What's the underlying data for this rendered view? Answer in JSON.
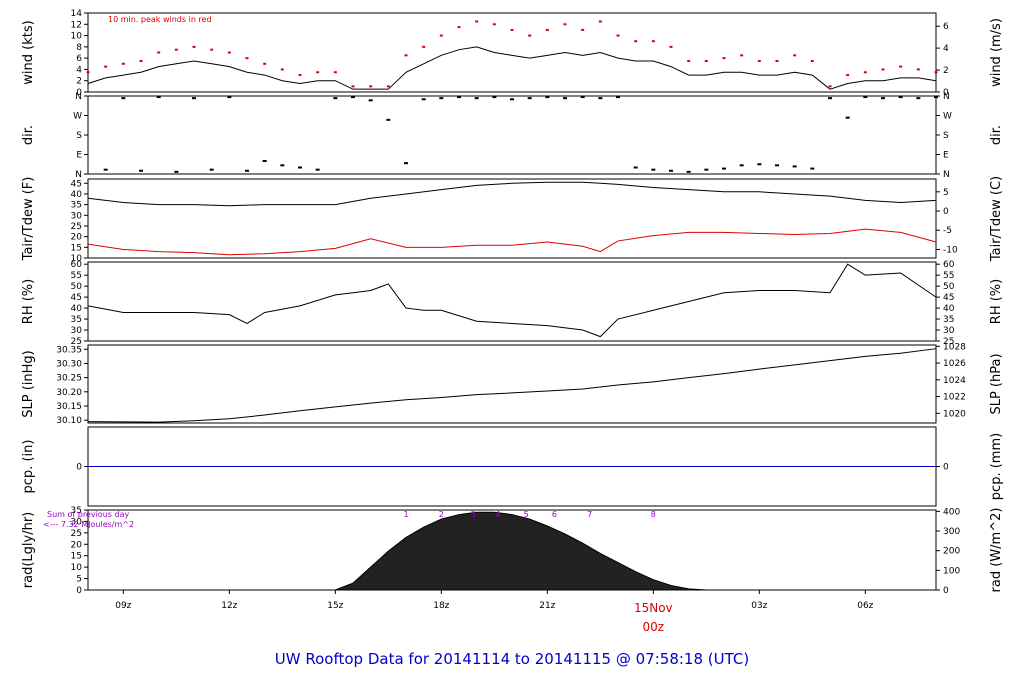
{
  "footer_title": "UW Rooftop Data for 20141114  to  20141115 @ 07:58:18  (UTC)",
  "colors": {
    "red": "#dd0000",
    "blue": "#0000cc",
    "purple": "#9900cc",
    "black": "#000000"
  },
  "chart_data": [
    {
      "id": "wind",
      "type": "line",
      "ylabel_left": "wind (kts)",
      "ylabel_right": "wind (m/s)",
      "ylim": [
        0,
        14
      ],
      "yticks": [
        "0",
        "2",
        "4",
        "6",
        "8",
        "10",
        "12",
        "14"
      ],
      "right_ticks": [
        {
          "value": 0,
          "label": "0"
        },
        {
          "value": 3.89,
          "label": "2"
        },
        {
          "value": 7.78,
          "label": "4"
        },
        {
          "value": 11.66,
          "label": "6"
        }
      ],
      "annotation": "10 min. peak winds in red",
      "x": [
        8.0,
        8.5,
        9.0,
        9.5,
        10.0,
        10.5,
        11.0,
        11.5,
        12.0,
        12.5,
        13.0,
        13.5,
        14.0,
        14.5,
        15.0,
        15.5,
        16.0,
        16.5,
        17.0,
        17.5,
        18.0,
        18.5,
        19.0,
        19.5,
        20.0,
        20.5,
        21.0,
        21.5,
        22.0,
        22.5,
        23.0,
        23.5,
        24.0,
        24.5,
        25.0,
        25.5,
        26.0,
        26.5,
        27.0,
        27.5,
        28.0,
        28.5,
        29.0,
        29.5,
        30.0,
        30.5,
        31.0,
        31.5,
        32.0
      ],
      "series": [
        {
          "name": "",
          "values": [
            1.5,
            2.5,
            3.0,
            3.5,
            4.5,
            5.0,
            5.5,
            5.0,
            4.5,
            3.5,
            3.0,
            2.0,
            1.5,
            2.0,
            2.0,
            0.5,
            0.5,
            0.5,
            3.5,
            5.0,
            6.5,
            7.5,
            8.0,
            7.0,
            6.5,
            6.0,
            6.5,
            7.0,
            6.5,
            7.0,
            6.0,
            5.5,
            5.5,
            4.5,
            3.0,
            3.0,
            3.5,
            3.5,
            3.0,
            3.0,
            3.5,
            3.0,
            0.5,
            1.5,
            2.0,
            2.0,
            2.5,
            2.5,
            2.0
          ]
        },
        {
          "name": "10 min. peak winds in red",
          "values": [
            3.5,
            4.5,
            5.0,
            5.5,
            7.0,
            7.5,
            8.0,
            7.5,
            7.0,
            6.0,
            5.0,
            4.0,
            3.0,
            3.5,
            3.5,
            1.0,
            1.0,
            1.0,
            6.5,
            8.0,
            10.0,
            11.5,
            12.5,
            12.0,
            11.0,
            10.0,
            11.0,
            12.0,
            11.0,
            12.5,
            10.0,
            9.0,
            9.0,
            8.0,
            5.5,
            5.5,
            6.0,
            6.5,
            5.5,
            5.5,
            6.5,
            5.5,
            1.0,
            3.0,
            3.5,
            4.0,
            4.5,
            4.0,
            3.5
          ]
        }
      ]
    },
    {
      "id": "dir",
      "type": "scatter",
      "ylabel_left": "dir.",
      "ylabel_right": "dir.",
      "ylim": [
        0,
        360
      ],
      "yticks": [
        "N",
        "E",
        "S",
        "W",
        "N"
      ],
      "x": [
        8.5,
        9.0,
        9.5,
        10.0,
        10.5,
        11.0,
        11.5,
        12.0,
        12.5,
        13.0,
        13.5,
        14.0,
        14.5,
        15.0,
        15.5,
        16.0,
        16.5,
        17.0,
        17.5,
        18.0,
        18.5,
        19.0,
        19.5,
        20.0,
        20.5,
        21.0,
        21.5,
        22.0,
        22.5,
        23.0,
        23.5,
        24.0,
        24.5,
        25.0,
        25.5,
        26.0,
        26.5,
        27.0,
        27.5,
        28.0,
        28.5,
        29.0,
        29.5,
        30.0,
        30.5,
        31.0,
        31.5,
        32.0
      ],
      "values": [
        20,
        350,
        15,
        355,
        10,
        350,
        20,
        355,
        15,
        60,
        40,
        30,
        20,
        350,
        355,
        340,
        250,
        50,
        345,
        350,
        355,
        350,
        355,
        345,
        350,
        355,
        350,
        355,
        350,
        355,
        30,
        20,
        15,
        10,
        20,
        25,
        40,
        45,
        40,
        35,
        25,
        350,
        260,
        355,
        350,
        355,
        350,
        355
      ]
    },
    {
      "id": "temp",
      "type": "line",
      "ylabel_left": "Tair/Tdew (F)",
      "ylabel_right": "Tair/Tdew (C)",
      "ylim": [
        10,
        47
      ],
      "yticks": [
        "10",
        "15",
        "20",
        "25",
        "30",
        "35",
        "40",
        "45"
      ],
      "right_ticks": [
        {
          "value": 14,
          "label": "-10"
        },
        {
          "value": 23,
          "label": "-5"
        },
        {
          "value": 32,
          "label": "0"
        },
        {
          "value": 41,
          "label": "5"
        }
      ],
      "x": [
        8.0,
        9.0,
        10.0,
        11.0,
        12.0,
        13.0,
        14.0,
        15.0,
        16.0,
        17.0,
        18.0,
        19.0,
        20.0,
        21.0,
        22.0,
        22.5,
        23.0,
        24.0,
        25.0,
        26.0,
        27.0,
        28.0,
        29.0,
        30.0,
        31.0,
        32.0
      ],
      "series": [
        {
          "name": "",
          "values": [
            38,
            36,
            35,
            35,
            34.5,
            35,
            35,
            35,
            38,
            40,
            42,
            44,
            45,
            45.5,
            45.5,
            45,
            44.5,
            43,
            42,
            41,
            41,
            40,
            39,
            37,
            36,
            37
          ]
        },
        {
          "name": "",
          "values": [
            16.5,
            14,
            13,
            12.5,
            11.5,
            12,
            13,
            14.5,
            19,
            15,
            15,
            16,
            16,
            17.5,
            15.5,
            13,
            18,
            20.5,
            22,
            22,
            21.5,
            21,
            21.5,
            23.5,
            22,
            17.5
          ]
        }
      ]
    },
    {
      "id": "rh",
      "type": "line",
      "ylabel_left": "RH (%)",
      "ylabel_right": "RH (%)",
      "ylim": [
        25,
        61
      ],
      "yticks": [
        "25",
        "30",
        "35",
        "40",
        "45",
        "50",
        "55",
        "60"
      ],
      "right_ticks": [
        {
          "value": 25,
          "label": "25"
        },
        {
          "value": 30,
          "label": "30"
        },
        {
          "value": 35,
          "label": "35"
        },
        {
          "value": 40,
          "label": "40"
        },
        {
          "value": 45,
          "label": "45"
        },
        {
          "value": 50,
          "label": "50"
        },
        {
          "value": 55,
          "label": "55"
        },
        {
          "value": 60,
          "label": "60"
        }
      ],
      "x": [
        8.0,
        9.0,
        10.0,
        11.0,
        12.0,
        12.5,
        13.0,
        14.0,
        15.0,
        15.5,
        16.0,
        16.5,
        17.0,
        17.5,
        18.0,
        19.0,
        20.0,
        21.0,
        22.0,
        22.5,
        23.0,
        24.0,
        25.0,
        26.0,
        27.0,
        28.0,
        29.0,
        29.5,
        30.0,
        31.0,
        32.0
      ],
      "values": [
        41,
        38,
        38,
        38,
        37,
        33,
        38,
        41,
        46,
        47,
        48,
        51,
        40,
        39,
        39,
        34,
        33,
        32,
        30,
        27,
        35,
        39,
        43,
        47,
        48,
        48,
        47,
        60,
        55,
        56,
        45
      ]
    },
    {
      "id": "slp",
      "type": "line",
      "ylabel_left": "SLP (inHg)",
      "ylabel_right": "SLP (hPa)",
      "ylim": [
        30.09,
        30.365
      ],
      "yticks": [
        "30.10",
        "30.15",
        "30.20",
        "30.25",
        "30.30",
        "30.35"
      ],
      "right_ticks": [
        {
          "value": 30.1241,
          "label": "1020"
        },
        {
          "value": 30.1832,
          "label": "1022"
        },
        {
          "value": 30.2422,
          "label": "1024"
        },
        {
          "value": 30.3013,
          "label": "1026"
        },
        {
          "value": 30.3604,
          "label": "1028"
        }
      ],
      "x": [
        8.0,
        9.0,
        10.0,
        11.0,
        12.0,
        13.0,
        14.0,
        15.0,
        16.0,
        17.0,
        18.0,
        19.0,
        20.0,
        21.0,
        22.0,
        23.0,
        24.0,
        25.0,
        26.0,
        27.0,
        28.0,
        29.0,
        30.0,
        31.0,
        32.0
      ],
      "values": [
        30.095,
        30.094,
        30.093,
        30.098,
        30.105,
        30.118,
        30.133,
        30.147,
        30.16,
        30.172,
        30.18,
        30.19,
        30.196,
        30.203,
        30.21,
        30.224,
        30.235,
        30.25,
        30.264,
        30.28,
        30.295,
        30.31,
        30.325,
        30.336,
        30.352
      ]
    },
    {
      "id": "pcp",
      "type": "line",
      "ylabel_left": "pcp. (in)",
      "ylabel_right": "pcp. (mm)",
      "ylim": [
        -1,
        1
      ],
      "yticks": [
        "0"
      ],
      "right_ticks": [
        {
          "value": 0,
          "label": "0"
        }
      ],
      "x": [
        8.0,
        32.0
      ],
      "values": [
        0,
        0
      ]
    },
    {
      "id": "rad",
      "type": "area",
      "ylabel_left": "rad(Lgly/hr)",
      "ylabel_right": "rad (W/m^2)",
      "ylim": [
        0,
        35
      ],
      "yticks": [
        "0",
        "5",
        "10",
        "15",
        "20",
        "25",
        "30",
        "35"
      ],
      "right_ticks": [
        {
          "value": 0,
          "label": "0"
        },
        {
          "value": 8.6,
          "label": "100"
        },
        {
          "value": 17.2,
          "label": "200"
        },
        {
          "value": 25.8,
          "label": "300"
        },
        {
          "value": 34.4,
          "label": "400"
        }
      ],
      "annotation_line1": "Sum of previous day",
      "annotation_line2": "<--- 7.32 MJoules/m^2",
      "hour_labels": [
        {
          "x": 17.0,
          "label": "1"
        },
        {
          "x": 18.0,
          "label": "2"
        },
        {
          "x": 18.9,
          "label": "3"
        },
        {
          "x": 19.6,
          "label": "4"
        },
        {
          "x": 20.4,
          "label": "5"
        },
        {
          "x": 21.2,
          "label": "6"
        },
        {
          "x": 22.2,
          "label": "7"
        },
        {
          "x": 24.0,
          "label": "8"
        }
      ],
      "x": [
        15.0,
        15.5,
        16.0,
        16.5,
        17.0,
        17.5,
        18.0,
        18.5,
        19.0,
        19.5,
        20.0,
        20.5,
        21.0,
        21.5,
        22.0,
        22.5,
        23.0,
        23.5,
        24.0,
        24.5,
        25.0,
        25.5
      ],
      "values": [
        0,
        3,
        10,
        17,
        23,
        27.5,
        31,
        33,
        34,
        34,
        33,
        31,
        28,
        24.5,
        20.5,
        16,
        12,
        8,
        4.5,
        2,
        0.5,
        0
      ]
    }
  ],
  "x_axis": {
    "range": [
      8.0,
      32.0
    ],
    "ticks": [
      {
        "x": 9,
        "label": "09z"
      },
      {
        "x": 12,
        "label": "12z"
      },
      {
        "x": 15,
        "label": "15z"
      },
      {
        "x": 18,
        "label": "18z"
      },
      {
        "x": 21,
        "label": "21z"
      },
      {
        "x": 27,
        "label": "03z"
      },
      {
        "x": 30,
        "label": "06z"
      }
    ],
    "midnight": {
      "x": 24,
      "date_label": "15Nov",
      "time_label": "00z"
    }
  }
}
